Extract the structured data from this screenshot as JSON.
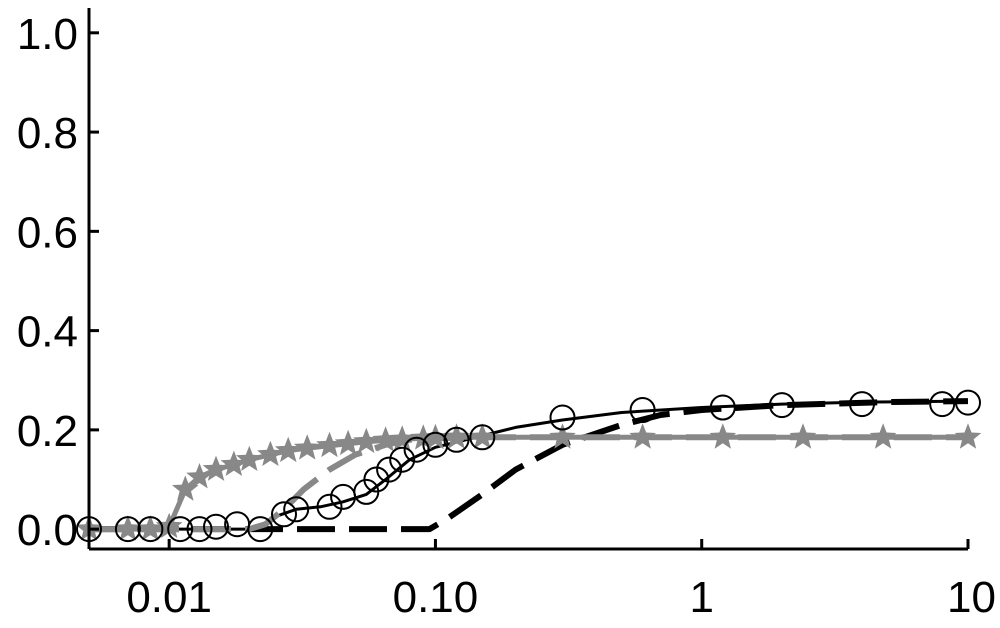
{
  "chart_data": {
    "type": "line",
    "title": "",
    "xlabel": "",
    "ylabel": "",
    "x_scale": "log",
    "xlim": [
      0.005,
      10
    ],
    "ylim": [
      -0.04,
      1.05
    ],
    "grid": false,
    "legend": "none",
    "x_ticks": [
      {
        "value": 0.01,
        "label": "0.01"
      },
      {
        "value": 0.1,
        "label": "0.10"
      },
      {
        "value": 1,
        "label": "1"
      },
      {
        "value": 10,
        "label": "10"
      }
    ],
    "y_ticks": [
      {
        "value": 0.0,
        "label": "0.0"
      },
      {
        "value": 0.2,
        "label": "0.2"
      },
      {
        "value": 0.4,
        "label": "0.4"
      },
      {
        "value": 0.6,
        "label": "0.6"
      },
      {
        "value": 0.8,
        "label": "0.8"
      },
      {
        "value": 1.0,
        "label": "1.0"
      }
    ],
    "series": [
      {
        "color": "#000000",
        "dash": "solid",
        "marker": "none",
        "width": 3,
        "x": [
          0.005,
          0.015,
          0.02,
          0.022,
          0.025,
          0.03,
          0.037,
          0.045,
          0.055,
          0.065,
          0.08,
          0.1,
          0.13,
          0.2,
          0.3,
          0.5,
          1,
          2,
          4,
          10
        ],
        "y": [
          0,
          0,
          0,
          0.005,
          0.025,
          0.04,
          0.045,
          0.055,
          0.07,
          0.1,
          0.14,
          0.165,
          0.18,
          0.205,
          0.22,
          0.235,
          0.245,
          0.252,
          0.256,
          0.258
        ]
      },
      {
        "color": "#000000",
        "dash": "dashed",
        "marker": "none",
        "width": 6,
        "x": [
          0.005,
          0.02,
          0.05,
          0.095,
          0.11,
          0.15,
          0.2,
          0.3,
          0.5,
          0.7,
          1,
          2,
          5,
          10
        ],
        "y": [
          0,
          0,
          0,
          0,
          0.02,
          0.07,
          0.12,
          0.17,
          0.21,
          0.23,
          0.24,
          0.25,
          0.256,
          0.258
        ]
      },
      {
        "color": "#888888",
        "dash": "dashed",
        "marker": "none",
        "width": 6,
        "x": [
          0.005,
          0.015,
          0.02,
          0.023,
          0.027,
          0.032,
          0.04,
          0.05,
          0.065,
          0.08,
          0.1,
          0.15,
          1,
          10
        ],
        "y": [
          0,
          0,
          0,
          0.01,
          0.04,
          0.08,
          0.12,
          0.15,
          0.17,
          0.18,
          0.183,
          0.185,
          0.185,
          0.185
        ]
      },
      {
        "color": "#888888",
        "dash": "solid",
        "marker": "star",
        "width": 5,
        "x": [
          0.005,
          0.007,
          0.0085,
          0.01,
          0.0115,
          0.013,
          0.015,
          0.0175,
          0.02,
          0.024,
          0.028,
          0.033,
          0.04,
          0.047,
          0.055,
          0.065,
          0.075,
          0.09,
          0.1,
          0.12,
          0.15,
          0.3,
          0.6,
          1.2,
          2.4,
          4.8,
          10
        ],
        "y": [
          0,
          0,
          0,
          0.005,
          0.08,
          0.105,
          0.12,
          0.13,
          0.14,
          0.15,
          0.158,
          0.163,
          0.168,
          0.172,
          0.176,
          0.179,
          0.181,
          0.183,
          0.184,
          0.185,
          0.185,
          0.185,
          0.185,
          0.185,
          0.185,
          0.185,
          0.185
        ]
      },
      {
        "color": "#000000",
        "dash": "none",
        "marker": "circle",
        "width": 2,
        "x": [
          0.005,
          0.007,
          0.0085,
          0.011,
          0.013,
          0.015,
          0.018,
          0.022,
          0.027,
          0.03,
          0.04,
          0.045,
          0.055,
          0.06,
          0.067,
          0.075,
          0.085,
          0.1,
          0.12,
          0.15,
          0.3,
          0.6,
          1.2,
          2,
          4,
          8,
          10
        ],
        "y": [
          0,
          0,
          0,
          0,
          0,
          0.005,
          0.01,
          0.0,
          0.03,
          0.04,
          0.045,
          0.065,
          0.075,
          0.1,
          0.12,
          0.14,
          0.16,
          0.17,
          0.18,
          0.185,
          0.225,
          0.24,
          0.245,
          0.25,
          0.252,
          0.252,
          0.255
        ]
      }
    ]
  }
}
